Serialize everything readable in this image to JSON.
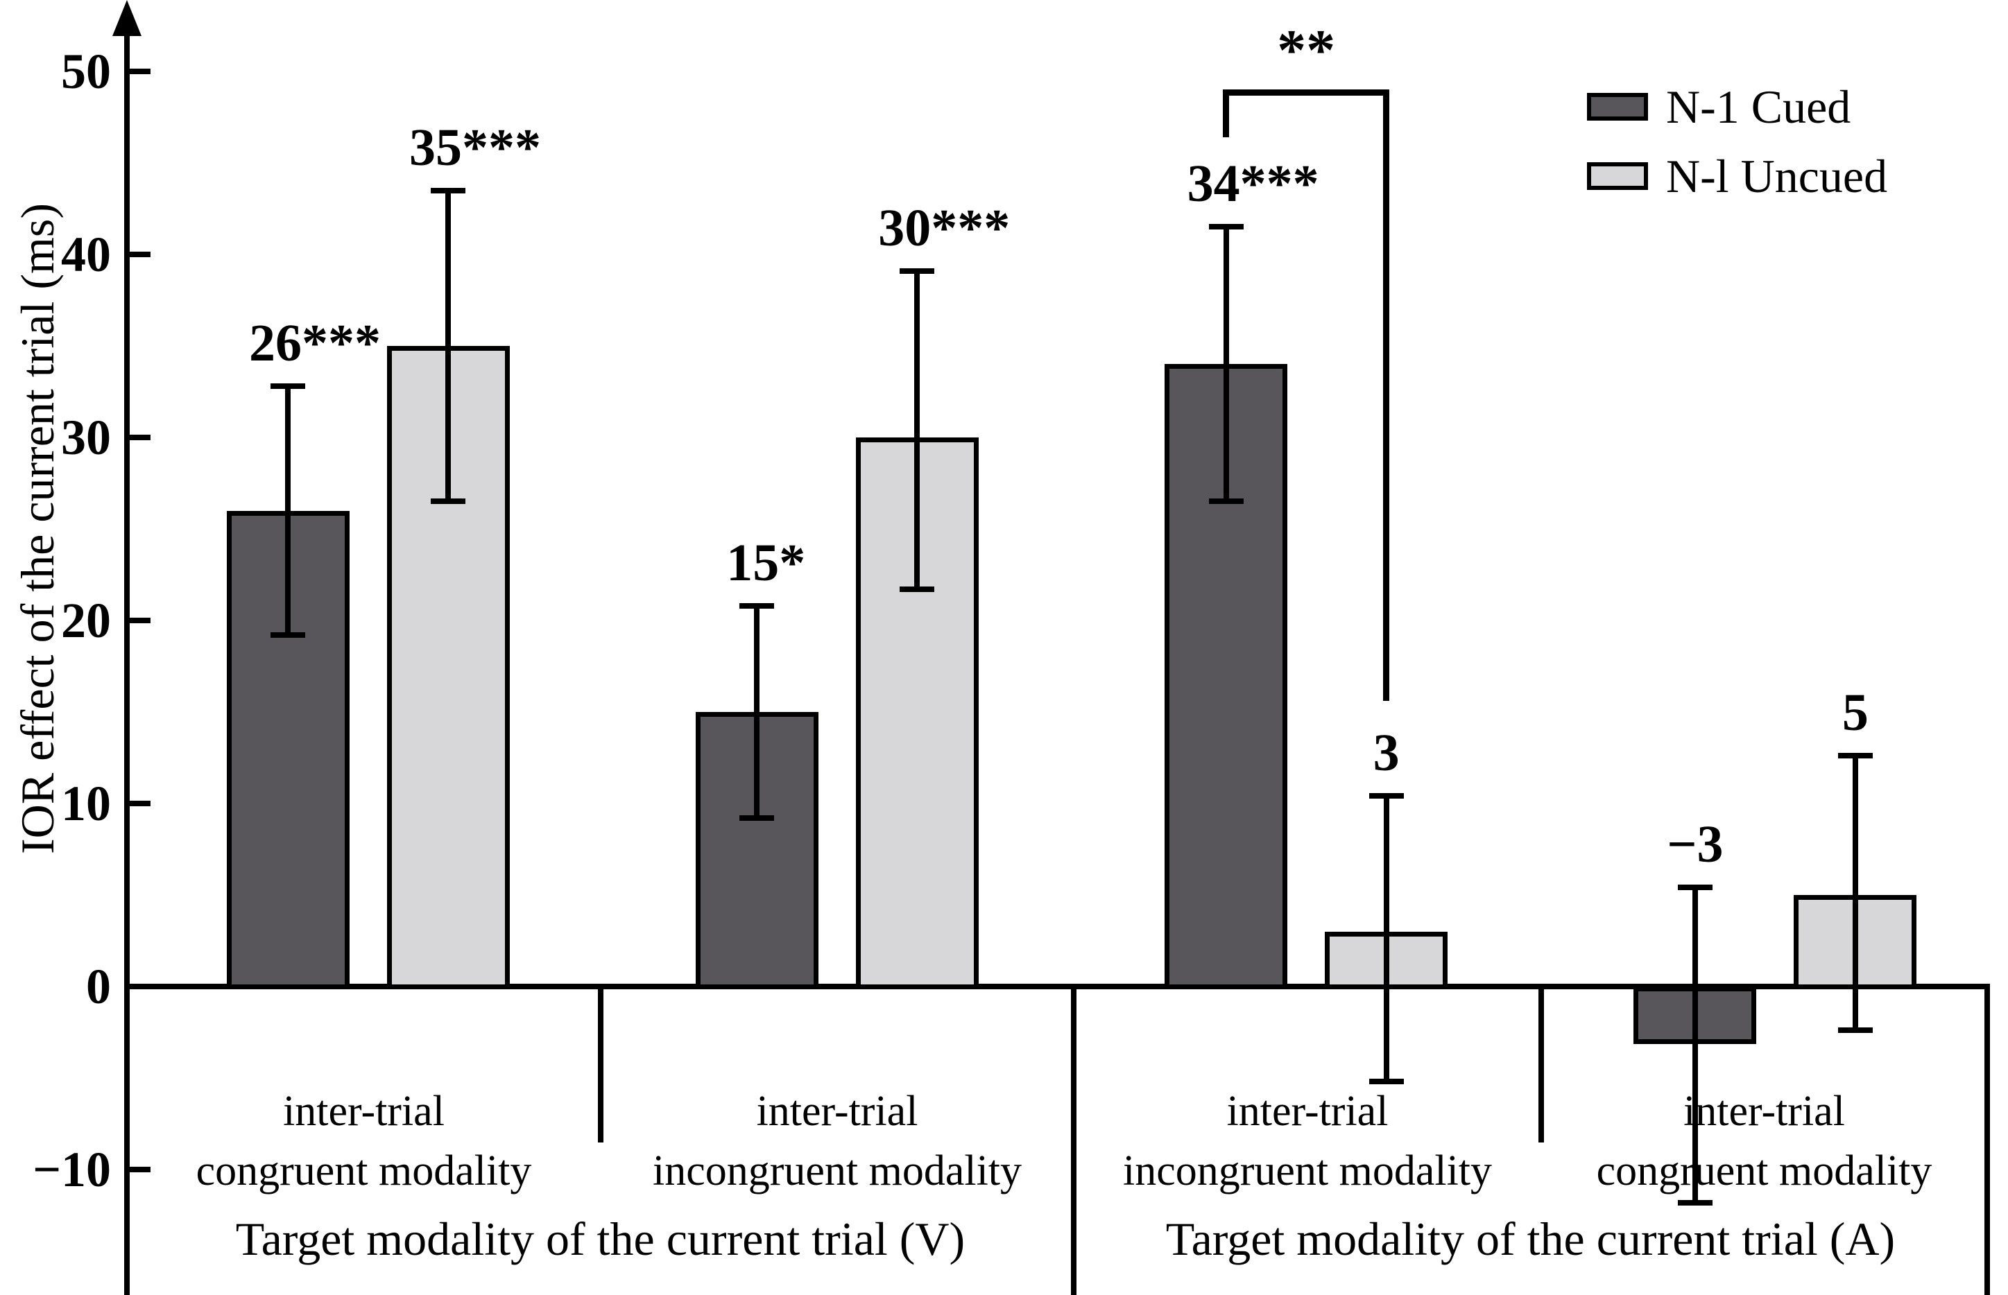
{
  "figure": {
    "background_color": "#FFFFFF",
    "line_color": "#000000"
  },
  "chart_data": {
    "type": "bar",
    "title": "",
    "xlabel": "",
    "ylabel": "IOR effect of the current trial (ms)",
    "ylim": [
      -10,
      50
    ],
    "yticks": [
      50,
      40,
      30,
      20,
      10,
      0,
      -10
    ],
    "ytick_labels": [
      "50",
      "40",
      "30",
      "20",
      "10",
      "0",
      "−10"
    ],
    "grid": false,
    "legend_position": "top-right",
    "series": [
      {
        "name": "N-1 Cued",
        "color": "#58565A",
        "values": [
          26,
          15,
          34,
          -3
        ]
      },
      {
        "name": "N-l Uncued",
        "color": "#D7D6D8",
        "values": [
          35,
          30,
          3,
          5
        ]
      }
    ],
    "groups": [
      {
        "condition_lines": [
          "inter-trial",
          "congruent modality"
        ],
        "half": "V",
        "bars": [
          {
            "series": "N-1 Cued",
            "value": 26,
            "label": "26***",
            "err_low": 19.2,
            "err_high": 32.8
          },
          {
            "series": "N-l Uncued",
            "value": 35,
            "label": "35***",
            "err_low": 26.5,
            "err_high": 43.5
          }
        ]
      },
      {
        "condition_lines": [
          "inter-trial",
          "incongruent modality"
        ],
        "half": "V",
        "bars": [
          {
            "series": "N-1 Cued",
            "value": 15,
            "label": "15*",
            "err_low": 9.2,
            "err_high": 20.8
          },
          {
            "series": "N-l Uncued",
            "value": 30,
            "label": "30***",
            "err_low": 21.7,
            "err_high": 39.1
          }
        ]
      },
      {
        "condition_lines": [
          "inter-trial",
          "incongruent modality"
        ],
        "half": "A",
        "bars": [
          {
            "series": "N-1 Cued",
            "value": 34,
            "label": "34***",
            "err_low": 26.5,
            "err_high": 41.5
          },
          {
            "series": "N-l Uncued",
            "value": 3,
            "label": "3",
            "err_low": -5.2,
            "err_high": 10.4
          }
        ]
      },
      {
        "condition_lines": [
          "inter-trial",
          "congruent modality"
        ],
        "half": "A",
        "bars": [
          {
            "series": "N-1 Cued",
            "value": -3,
            "label": "−3",
            "err_low": -11.8,
            "err_high": 5.4
          },
          {
            "series": "N-l Uncued",
            "value": 5,
            "label": "5",
            "err_low": -2.4,
            "err_high": 12.6
          }
        ]
      }
    ],
    "group_axis_labels": [
      "Target modality of the current trial (V)",
      "Target modality of the current trial (A)"
    ],
    "significance": {
      "label": "**",
      "group_index": 2,
      "top_value": 49,
      "left_drop_value": 46.4,
      "right_drop_value": 15.6
    },
    "legend": [
      {
        "label": "N-1 Cued",
        "color": "#58565A"
      },
      {
        "label": "N-l Uncued",
        "color": "#D7D6D8"
      }
    ]
  }
}
